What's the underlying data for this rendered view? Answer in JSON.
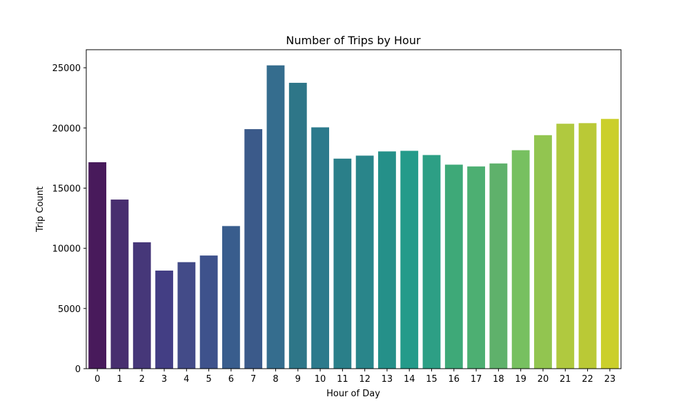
{
  "chart_data": {
    "type": "bar",
    "title": "Number of Trips by Hour",
    "xlabel": "Hour of Day",
    "ylabel": "Trip Count",
    "categories": [
      "0",
      "1",
      "2",
      "3",
      "4",
      "5",
      "6",
      "7",
      "8",
      "9",
      "10",
      "11",
      "12",
      "13",
      "14",
      "15",
      "16",
      "17",
      "18",
      "19",
      "20",
      "21",
      "22",
      "23"
    ],
    "values": [
      17150,
      14050,
      10500,
      8150,
      8850,
      9400,
      11850,
      19900,
      25200,
      23750,
      20050,
      17450,
      17700,
      18050,
      18100,
      17750,
      16950,
      16800,
      17050,
      18150,
      19400,
      20350,
      20400,
      20750
    ],
    "ylim": [
      0,
      26500
    ],
    "yticks": [
      0,
      5000,
      10000,
      15000,
      20000,
      25000
    ],
    "ytick_labels": [
      "0",
      "5000",
      "10000",
      "15000",
      "20000",
      "25000"
    ],
    "colors": [
      "#481a5b",
      "#482e6f",
      "#463779",
      "#433e84",
      "#434b88",
      "#3e528c",
      "#395d8d",
      "#3b5a8a",
      "#356d8e",
      "#2e7688",
      "#2c7a8c",
      "#2a7f89",
      "#29858a",
      "#259089",
      "#249b8a",
      "#2d9f85",
      "#3ea978",
      "#4daf72",
      "#5fb16b",
      "#77c060",
      "#92c550",
      "#b0c93f",
      "#bac936",
      "#cbcf2b"
    ],
    "grid": false,
    "legend": "none"
  }
}
